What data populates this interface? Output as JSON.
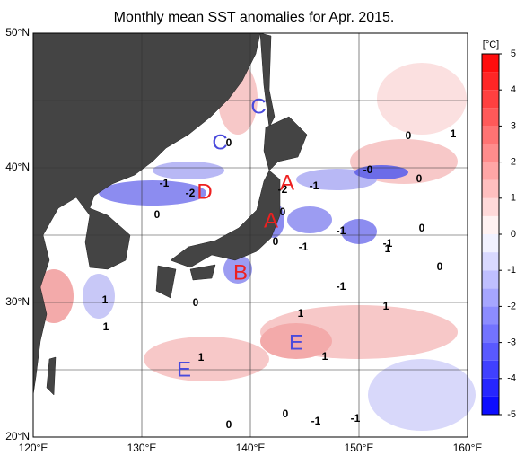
{
  "title": "Monthly mean SST anomalies for Apr. 2015.",
  "lon_labels": [
    "120°E",
    "130°E",
    "140°E",
    "150°E",
    "160°E"
  ],
  "lat_labels": [
    "20°N",
    "30°N",
    "40°N",
    "50°N"
  ],
  "colorbar": {
    "unit": "[°C]",
    "range": [
      -5,
      5
    ],
    "ticks": [
      5,
      4,
      3,
      2,
      1,
      0,
      -1,
      -2,
      -3,
      -4,
      -5
    ],
    "low_color": "#0000ff",
    "mid_color": "#ffffff",
    "high_color": "#ff0000"
  },
  "contour_labels": [
    "0",
    "1",
    "0",
    "-0",
    "0",
    "-1",
    "-2",
    "-1",
    "-2",
    "0",
    "0",
    "0",
    "-1",
    "0",
    "-1",
    "-1",
    "1",
    "0",
    "-1",
    "1",
    "1",
    "0",
    "1",
    "1",
    "1",
    "1",
    "0",
    "-1",
    "-1",
    "0"
  ],
  "region_letters": [
    {
      "text": "C",
      "color": "#4a4adc"
    },
    {
      "text": "C",
      "color": "#4a4adc"
    },
    {
      "text": "D",
      "color": "#ee2020"
    },
    {
      "text": "A",
      "color": "#ee2020"
    },
    {
      "text": "A",
      "color": "#ee2020"
    },
    {
      "text": "B",
      "color": "#ee2020"
    },
    {
      "text": "E",
      "color": "#4a4adc"
    },
    {
      "text": "E",
      "color": "#4a4adc"
    }
  ]
}
